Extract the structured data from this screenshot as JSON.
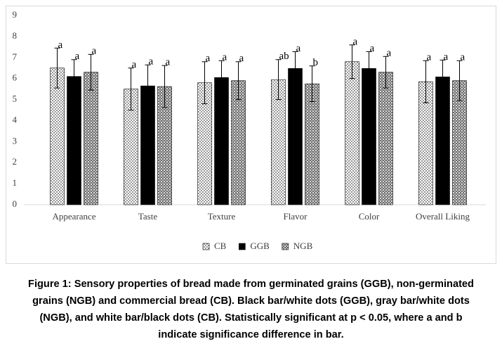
{
  "chart_data": {
    "type": "bar",
    "categories": [
      "Appearance",
      "Taste",
      "Texture",
      "Flavor",
      "Color",
      "Overall Liking"
    ],
    "series": [
      {
        "name": "CB",
        "pattern": "white-dots",
        "values": [
          6.5,
          5.5,
          5.8,
          5.95,
          6.8,
          5.85
        ],
        "errors": [
          0.95,
          1.0,
          1.0,
          0.95,
          0.8,
          1.0
        ],
        "letters": [
          "a",
          "a",
          "a",
          "ab",
          "a",
          "a"
        ]
      },
      {
        "name": "GGB",
        "pattern": "black",
        "values": [
          6.1,
          5.65,
          6.05,
          6.48,
          6.48,
          6.08
        ],
        "errors": [
          0.8,
          1.0,
          0.8,
          0.8,
          0.8,
          0.8
        ],
        "letters": [
          "a",
          "a",
          "a",
          "a",
          "a",
          "a"
        ]
      },
      {
        "name": "NGB",
        "pattern": "gray-checker",
        "values": [
          6.3,
          5.62,
          5.9,
          5.75,
          6.3,
          5.9
        ],
        "errors": [
          0.85,
          1.0,
          0.9,
          0.85,
          0.75,
          0.95
        ],
        "letters": [
          "a",
          "a",
          "a",
          "b",
          "a",
          "a"
        ]
      }
    ],
    "ylim": [
      0,
      9
    ],
    "yticks": [
      0,
      1,
      2,
      3,
      4,
      5,
      6,
      7,
      8,
      9
    ],
    "grid": false,
    "legend": "bottom"
  },
  "caption": [
    "Figure 1: Sensory properties of bread made from germinated grains (GGB), non-germinated",
    "grains (NGB) and commercial bread (CB). Black bar/white dots (GGB), gray bar/white dots",
    "(NGB), and white bar/black dots (CB). Statistically significant at p < 0.05, where a and b",
    "indicate significance difference in bar."
  ]
}
